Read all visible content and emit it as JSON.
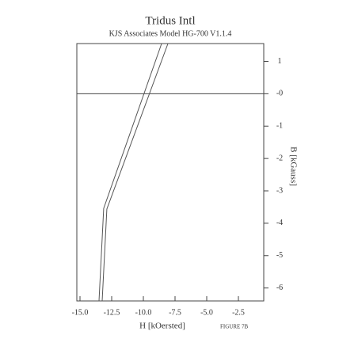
{
  "chart_data": {
    "type": "line",
    "title": "Tridus Intl",
    "subtitle": "KJS Associates Model HG-700 V1.1.4",
    "x_label": "H [kOersted]",
    "y_label": "B [kGauss]",
    "annotation": "FIGURE 7B",
    "series": [
      {
        "x": [
          -8.56,
          -13.13,
          -13.5
        ],
        "values": [
          1.55,
          -3.54,
          -6.4
        ],
        "color": "#555555"
      },
      {
        "x": [
          -8.06,
          -12.88,
          -13.25
        ],
        "values": [
          1.55,
          -3.56,
          -6.4
        ],
        "color": "#555555"
      }
    ],
    "xlim": [
      -15.25,
      -0.5
    ],
    "ylim": [
      -6.4,
      1.55
    ],
    "xticks": [
      {
        "value": -15,
        "label": "-15.0"
      },
      -12.5,
      {
        "value": -10,
        "label": "-10.0"
      },
      -7.5,
      {
        "value": -5,
        "label": "-5.0"
      },
      -2.5
    ],
    "yticks": [
      1,
      {
        "value": 0,
        "label": "-0"
      },
      -1,
      -2,
      -3,
      -4,
      -5,
      -6
    ],
    "zero_line": true
  }
}
